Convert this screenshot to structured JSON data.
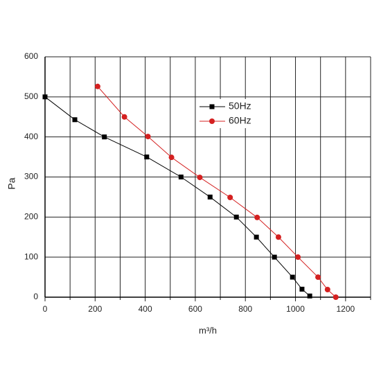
{
  "chart_data": {
    "type": "line",
    "x_label": "m³/h",
    "y_label": "Pa",
    "xlim": [
      0,
      1300
    ],
    "xticks": [
      0,
      200,
      400,
      600,
      800,
      1000,
      1200
    ],
    "xminorticks": [
      100,
      300,
      500,
      700,
      900,
      1100,
      1300
    ],
    "ylim": [
      0,
      600
    ],
    "yticks": [
      0,
      100,
      200,
      300,
      400,
      500,
      600
    ],
    "grid": true,
    "series": [
      {
        "name": "50Hz",
        "color": "#000000",
        "marker": "square",
        "x": [
          0,
          119,
          237,
          406,
          543,
          659,
          764,
          844,
          916,
          988,
          1026,
          1057
        ],
        "values": [
          500,
          443,
          400,
          350,
          300,
          250,
          200,
          150,
          100,
          50,
          20,
          3
        ]
      },
      {
        "name": "60Hz",
        "color": "#d42020",
        "marker": "circle",
        "x": [
          210,
          317,
          411,
          505,
          618,
          739,
          847,
          932,
          1010,
          1090,
          1128,
          1161
        ],
        "values": [
          526,
          450,
          401,
          349,
          299,
          249,
          199,
          150,
          100,
          50,
          19,
          0
        ]
      }
    ]
  }
}
